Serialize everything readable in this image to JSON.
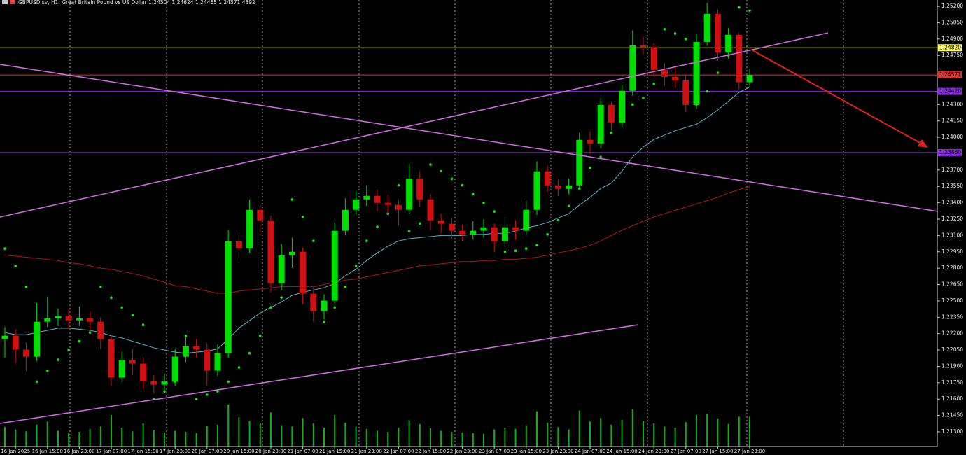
{
  "chart_data": {
    "type": "candlestick",
    "title": "GBPUSD.sv, H1: Great Britain Pound vs US Dollar  1.24504 1.24624 1.24465 1.24571  4892",
    "categories": [
      null,
      "16 Jan 2025",
      null,
      null,
      "16 Jan 15:00",
      null,
      null,
      "16 Jan 23:00",
      null,
      null,
      "17 Jan 07:00",
      null,
      null,
      "17 Jan 15:00",
      null,
      null,
      "17 Jan 23:00",
      null,
      null,
      "20 Jan 07:00",
      null,
      null,
      "20 Jan 15:00",
      null,
      null,
      "20 Jan 23:00",
      null,
      null,
      "21 Jan 07:00",
      null,
      null,
      "21 Jan 15:00",
      null,
      null,
      "21 Jan 23:00",
      null,
      null,
      "22 Jan 07:00",
      null,
      null,
      "22 Jan 15:00",
      null,
      null,
      "22 Jan 23:00",
      null,
      null,
      "23 Jan 07:00",
      null,
      null,
      "23 Jan 15:00",
      null,
      null,
      "23 Jan 23:00",
      null,
      null,
      "24 Jan 07:00",
      null,
      null,
      "24 Jan 15:00",
      null,
      null,
      "24 Jan 23:00",
      null,
      null,
      "27 Jan 07:00",
      null,
      null,
      "27 Jan 15:00",
      null,
      null,
      "27 Jan 23:00"
    ],
    "open": [
      1.2215,
      1.22181,
      1.22053,
      1.21989,
      1.22309,
      1.22341,
      1.2236,
      1.22322,
      1.22341,
      1.22309,
      1.22149,
      1.21797,
      1.21957,
      1.21925,
      1.21765,
      1.21732,
      1.2176,
      1.21989,
      1.22085,
      1.22053,
      1.21861,
      1.22021,
      1.23047,
      1.22982,
      1.23335,
      1.23239,
      1.22662,
      1.22918,
      1.2295,
      1.22566,
      1.22406,
      1.22502,
      1.23143,
      1.23335,
      1.23431,
      1.23463,
      1.23399,
      1.2338,
      1.23335,
      1.23623,
      1.23431,
      1.23239,
      1.23207,
      1.23143,
      1.23111,
      1.23143,
      1.23175,
      1.23047,
      1.23175,
      1.23143,
      1.23335,
      1.23688,
      1.23559,
      1.23527,
      1.23559,
      1.23976,
      1.23944,
      1.24296,
      1.24136,
      1.24425,
      1.24841,
      1.24822,
      1.24617,
      1.24553,
      1.24521,
      1.24296,
      1.24873,
      1.2513,
      1.24777,
      1.24938,
      1.24504
    ],
    "high": [
      1.2226,
      1.2224,
      1.2212,
      1.2248,
      1.2254,
      1.2243,
      1.2242,
      1.2245,
      1.224,
      1.2235,
      1.2218,
      1.2203,
      1.2206,
      1.2198,
      1.2182,
      1.2183,
      1.2206,
      1.2217,
      1.2215,
      1.2211,
      1.221,
      1.2315,
      1.2313,
      1.2343,
      1.234,
      1.2328,
      1.2302,
      1.2308,
      1.2299,
      1.2262,
      1.2256,
      1.2322,
      1.2344,
      1.2351,
      1.2356,
      1.2352,
      1.2347,
      1.2342,
      1.2376,
      1.2369,
      1.2348,
      1.233,
      1.2326,
      1.232,
      1.2323,
      1.2325,
      1.2321,
      1.2326,
      1.2324,
      1.2342,
      1.2378,
      1.2374,
      1.2361,
      1.2362,
      1.2404,
      1.2405,
      1.2436,
      1.2433,
      1.2448,
      1.2498,
      1.2492,
      1.2486,
      1.2468,
      1.2464,
      1.2457,
      1.2495,
      1.2523,
      1.2517,
      1.25,
      1.2496,
      1.24624
    ],
    "low": [
      1.2198,
      1.2193,
      1.2186,
      1.2195,
      1.2226,
      1.2227,
      1.2225,
      1.2227,
      1.2223,
      1.2206,
      1.2172,
      1.2176,
      1.2182,
      1.2169,
      1.2165,
      1.2168,
      1.2172,
      1.2194,
      1.2198,
      1.2172,
      1.2181,
      1.2198,
      1.2288,
      1.2294,
      1.231,
      1.2258,
      1.226,
      1.228,
      1.2247,
      1.2231,
      1.2233,
      1.2248,
      1.231,
      1.2329,
      1.2337,
      1.2332,
      1.233,
      1.2319,
      1.233,
      1.2336,
      1.2315,
      1.2312,
      1.2307,
      1.2305,
      1.2306,
      1.2308,
      1.2295,
      1.2299,
      1.2306,
      1.231,
      1.2329,
      1.235,
      1.2346,
      1.2348,
      1.2352,
      1.2385,
      1.239,
      1.2406,
      1.2409,
      1.2438,
      1.2476,
      1.2456,
      1.2447,
      1.2445,
      1.2423,
      1.2426,
      1.2484,
      1.247,
      1.2472,
      1.2444,
      1.24465
    ],
    "close": [
      1.22181,
      1.22053,
      1.21989,
      1.22309,
      1.22341,
      1.2236,
      1.22322,
      1.22341,
      1.22309,
      1.22149,
      1.21797,
      1.21957,
      1.21925,
      1.21765,
      1.21732,
      1.2176,
      1.21989,
      1.22085,
      1.22053,
      1.21861,
      1.22021,
      1.23047,
      1.22982,
      1.23335,
      1.23239,
      1.22662,
      1.22918,
      1.2295,
      1.22566,
      1.22406,
      1.22502,
      1.23143,
      1.23335,
      1.23431,
      1.23463,
      1.23399,
      1.2338,
      1.23335,
      1.23623,
      1.23431,
      1.23239,
      1.23207,
      1.23143,
      1.23111,
      1.23143,
      1.23175,
      1.23047,
      1.23175,
      1.23143,
      1.23335,
      1.23688,
      1.23559,
      1.23527,
      1.23559,
      1.23976,
      1.23944,
      1.24296,
      1.24136,
      1.24425,
      1.24841,
      1.24822,
      1.24617,
      1.24553,
      1.24521,
      1.24296,
      1.24873,
      1.2513,
      1.24777,
      1.24938,
      1.24504,
      1.24571
    ],
    "up_color": "#00e000",
    "down_color": "#d01010",
    "lines": [
      {
        "color": "#5fb3c4",
        "values": [
          1.2221,
          1.2219,
          1.2219,
          1.2221,
          1.2223,
          1.2225,
          1.2225,
          1.2224,
          1.2223,
          1.2221,
          1.2218,
          1.2216,
          1.2213,
          1.221,
          1.2207,
          1.2205,
          1.2203,
          1.2202,
          1.2203,
          1.2204,
          1.2206,
          1.2215,
          1.2225,
          1.2232,
          1.2239,
          1.2244,
          1.2249,
          1.2255,
          1.2258,
          1.226,
          1.2262,
          1.2266,
          1.2273,
          1.2279,
          1.2287,
          1.2294,
          1.23,
          1.2305,
          1.2307,
          1.2308,
          1.2309,
          1.231,
          1.231,
          1.231,
          1.2311,
          1.2311,
          1.2312,
          1.2312,
          1.2314,
          1.2317,
          1.2319,
          1.2322,
          1.2326,
          1.233,
          1.2338,
          1.2345,
          1.2353,
          1.2358,
          1.2369,
          1.2382,
          1.2391,
          1.2398,
          1.2402,
          1.2406,
          1.2409,
          1.2412,
          1.2418,
          1.2425,
          1.2433,
          1.2441,
          1.2446
        ]
      },
      {
        "color": "#a81818",
        "values": [
          1.2292,
          1.2291,
          1.229,
          1.2289,
          1.2288,
          1.2287,
          1.2285,
          1.2284,
          1.2282,
          1.228,
          1.2279,
          1.2277,
          1.2275,
          1.2273,
          1.227,
          1.2267,
          1.2264,
          1.2263,
          1.2261,
          1.2259,
          1.2257,
          1.2257,
          1.2259,
          1.226,
          1.2261,
          1.2262,
          1.2263,
          1.2263,
          1.2263,
          1.2263,
          1.2265,
          1.2267,
          1.2269,
          1.227,
          1.2272,
          1.2274,
          1.2276,
          1.2278,
          1.228,
          1.2282,
          1.2283,
          1.2284,
          1.2285,
          1.2286,
          1.2286,
          1.2287,
          1.2287,
          1.2288,
          1.2288,
          1.2289,
          1.229,
          1.2292,
          1.2294,
          1.2296,
          1.2298,
          1.2301,
          1.2305,
          1.231,
          1.2315,
          1.2319,
          1.2323,
          1.2327,
          1.233,
          1.2333,
          1.2336,
          1.2339,
          1.2342,
          1.2345,
          1.2349,
          1.2352,
          1.2355
        ]
      }
    ],
    "sar": {
      "color": "#22dd22",
      "values": [
        1.2298,
        1.2282,
        1.2263,
        1.2176,
        1.2186,
        1.2196,
        1.2205,
        1.2213,
        1.2221,
        1.2263,
        1.2253,
        1.2244,
        1.2237,
        1.2228,
        1.216,
        1.2167,
        1.2176,
        1.2218,
        1.216,
        1.2164,
        1.2167,
        1.2176,
        1.2189,
        1.2202,
        1.2218,
        1.2244,
        1.2253,
        1.2343,
        1.2327,
        1.2305,
        1.2231,
        1.2244,
        1.2263,
        1.2282,
        1.2305,
        1.2318,
        1.233,
        1.2356,
        1.2314,
        1.2321,
        1.2375,
        1.2369,
        1.2362,
        1.2356,
        1.2348,
        1.234,
        1.2332,
        1.2295,
        1.2296,
        1.2298,
        1.2301,
        1.2311,
        1.2324,
        1.2337,
        1.2353,
        1.2372,
        1.2382,
        1.2404,
        1.242,
        1.243,
        1.2436,
        1.2449,
        1.2499,
        1.2495,
        1.249,
        1.243,
        1.2442,
        1.2459,
        1.2475,
        1.2519,
        1.2516
      ]
    },
    "volume": [
      3200,
      2800,
      2500,
      3600,
      4100,
      2600,
      2200,
      2400,
      2900,
      3300,
      5200,
      3100,
      2500,
      3800,
      2700,
      2300,
      2600,
      2400,
      2200,
      3400,
      3600,
      6900,
      4800,
      4200,
      3900,
      5600,
      3500,
      3300,
      4700,
      3800,
      3100,
      5200,
      3900,
      3300,
      2900,
      2600,
      2400,
      3100,
      4300,
      3700,
      3000,
      2600,
      2400,
      2300,
      2200,
      2100,
      2800,
      3100,
      2900,
      3500,
      5800,
      3900,
      3200,
      2800,
      5900,
      4100,
      4700,
      3600,
      4400,
      6100,
      4200,
      3800,
      3300,
      3100,
      4000,
      5200,
      5400,
      4600,
      3700,
      4900,
      4892
    ],
    "volume_color": "#12b012",
    "levels": [
      {
        "value": 1.2482,
        "label": "1.24820",
        "color": "#ffff66"
      },
      {
        "value": 1.24571,
        "label": "1.24571",
        "color": "#e03030"
      },
      {
        "value": 1.2442,
        "label": "1.24420",
        "color": "#8a2be2"
      },
      {
        "value": 1.2386,
        "label": "1.23860",
        "color": "#8a2be2"
      }
    ],
    "ylim": [
      1.21165,
      1.25258
    ],
    "yticks": [
      {
        "value": 1.213,
        "label": "1.21300"
      },
      {
        "value": 1.2145,
        "label": "1.21450"
      },
      {
        "value": 1.216,
        "label": "1.21600"
      },
      {
        "value": 1.2175,
        "label": "1.21750"
      },
      {
        "value": 1.219,
        "label": "1.21900"
      },
      {
        "value": 1.2205,
        "label": "1.22050"
      },
      {
        "value": 1.222,
        "label": "1.22200"
      },
      {
        "value": 1.2235,
        "label": "1.22350"
      },
      {
        "value": 1.225,
        "label": "1.22500"
      },
      {
        "value": 1.2265,
        "label": "1.22650"
      },
      {
        "value": 1.228,
        "label": "1.22800"
      },
      {
        "value": 1.2295,
        "label": "1.22950"
      },
      {
        "value": 1.231,
        "label": "1.23100"
      },
      {
        "value": 1.2325,
        "label": "1.23250"
      },
      {
        "value": 1.234,
        "label": "1.23400"
      },
      {
        "value": 1.2355,
        "label": "1.23550"
      },
      {
        "value": 1.237,
        "label": "1.23700"
      },
      {
        "value": 1.24,
        "label": "1.24000"
      },
      {
        "value": 1.2415,
        "label": "1.24150"
      },
      {
        "value": 1.243,
        "label": "1.24300"
      },
      {
        "value": 1.2475,
        "label": "1.24750"
      },
      {
        "value": 1.249,
        "label": "1.24900"
      },
      {
        "value": 1.2505,
        "label": "1.25050"
      },
      {
        "value": 1.252,
        "label": "1.25200"
      }
    ]
  }
}
